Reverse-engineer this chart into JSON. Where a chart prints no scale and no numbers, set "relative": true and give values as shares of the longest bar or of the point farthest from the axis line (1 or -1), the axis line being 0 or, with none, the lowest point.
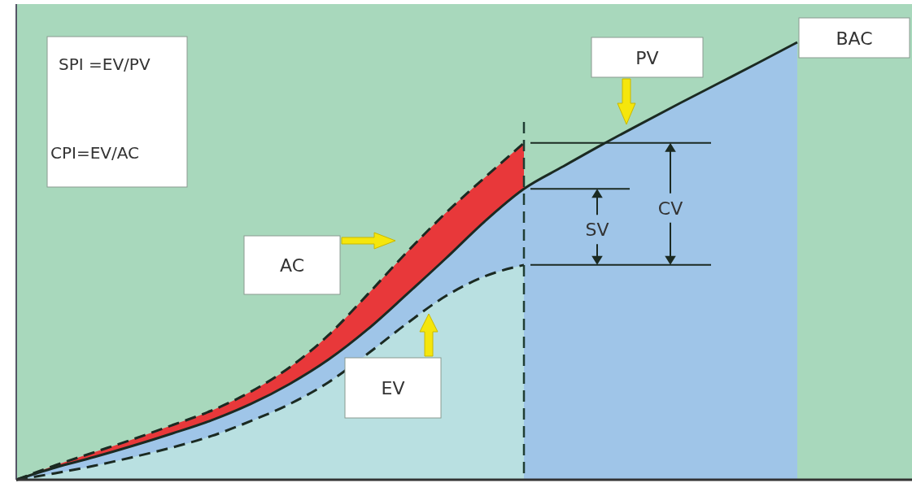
{
  "chart_data": {
    "type": "area",
    "relative": true,
    "categories": [
      null,
      null,
      null,
      null,
      null,
      null,
      null,
      null,
      null,
      null,
      null,
      null,
      null,
      null,
      null,
      null,
      null,
      null,
      null,
      null,
      null
    ],
    "series": [
      {
        "color": "#e8383a",
        "line_style": "dashed",
        "values": [
          0,
          0.033,
          0.063,
          0.093,
          0.125,
          0.158,
          0.201,
          0.257,
          0.331,
          0.424,
          0.52,
          0.61,
          0.691,
          0.77,
          null,
          null,
          null,
          null,
          null,
          null,
          null
        ]
      },
      {
        "color": "#9fc5e8",
        "line_style": "solid",
        "values": [
          0,
          0.028,
          0.052,
          0.078,
          0.106,
          0.136,
          0.173,
          0.219,
          0.275,
          0.344,
          0.424,
          0.506,
          0.591,
          0.665,
          0.716,
          0.766,
          0.814,
          0.861,
          0.907,
          0.953,
          1
        ]
      },
      {
        "color": "#b9e0e1",
        "line_style": "dashed",
        "values": [
          0,
          0.015,
          0.032,
          0.052,
          0.074,
          0.1,
          0.134,
          0.173,
          0.223,
          0.288,
          0.357,
          0.42,
          0.465,
          0.491,
          null,
          null,
          null,
          null,
          null,
          null,
          null
        ]
      }
    ],
    "annotations": [
      "SPI =EV/PV",
      "CPI=EV/AC",
      "AC",
      "EV",
      "PV",
      "BAC",
      "SV",
      "CV"
    ]
  }
}
